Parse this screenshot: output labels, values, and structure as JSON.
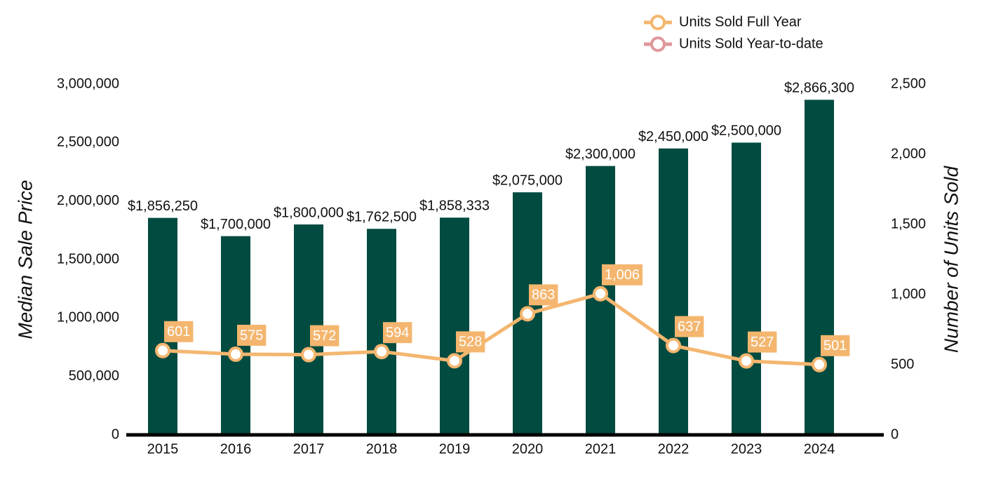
{
  "chart_data": {
    "type": "bar",
    "categories": [
      "2015",
      "2016",
      "2017",
      "2018",
      "2019",
      "2020",
      "2021",
      "2022",
      "2023",
      "2024"
    ],
    "series": [
      {
        "type": "bar",
        "color": "#024b40",
        "values": [
          1856250,
          1700000,
          1800000,
          1762500,
          1858333,
          2075000,
          2300000,
          2450000,
          2500000,
          2866300
        ],
        "value_labels": [
          "$1,856,250",
          "$1,700,000",
          "$1,800,000",
          "$1,762,500",
          "$1,858,333",
          "$2,075,000",
          "$2,300,000",
          "$2,450,000",
          "$2,500,000",
          "$2,866,300"
        ]
      },
      {
        "type": "line",
        "name": "Units Sold Full Year",
        "color": "#f4b66f",
        "axis": "y2",
        "values": [
          601,
          575,
          572,
          594,
          528,
          863,
          1006,
          637,
          527,
          501
        ],
        "value_labels": [
          "601",
          "575",
          "572",
          "594",
          "528",
          "863",
          "1,006",
          "637",
          "527",
          "501"
        ]
      },
      {
        "type": "line",
        "name": "Units Sold Year-to-date",
        "color": "#e0979a",
        "axis": "y2",
        "values": [
          null,
          null,
          null,
          null,
          null,
          null,
          null,
          null,
          null,
          null
        ]
      }
    ],
    "ylabel": "Median Sale Price",
    "y2label": "Number of Units Sold",
    "ylim": [
      0,
      3000000
    ],
    "yticks": [
      0,
      {
        "value": 500000,
        "label": "500,000"
      },
      {
        "value": 1000000,
        "label": "1,000,000"
      },
      {
        "value": 1500000,
        "label": "1,500,000"
      },
      {
        "value": 2000000,
        "label": "2,000,000"
      },
      {
        "value": 2500000,
        "label": "2,500,000"
      },
      {
        "value": 3000000,
        "label": "3,000,000"
      }
    ],
    "y2lim": [
      0,
      2500
    ],
    "y2ticks": [
      0,
      500,
      {
        "value": 1000,
        "label": "1,000"
      },
      {
        "value": 1500,
        "label": "1,500"
      },
      {
        "value": 2000,
        "label": "2,000"
      },
      {
        "value": 2500,
        "label": "2,500"
      }
    ],
    "legend": "top-right",
    "grid": false
  }
}
